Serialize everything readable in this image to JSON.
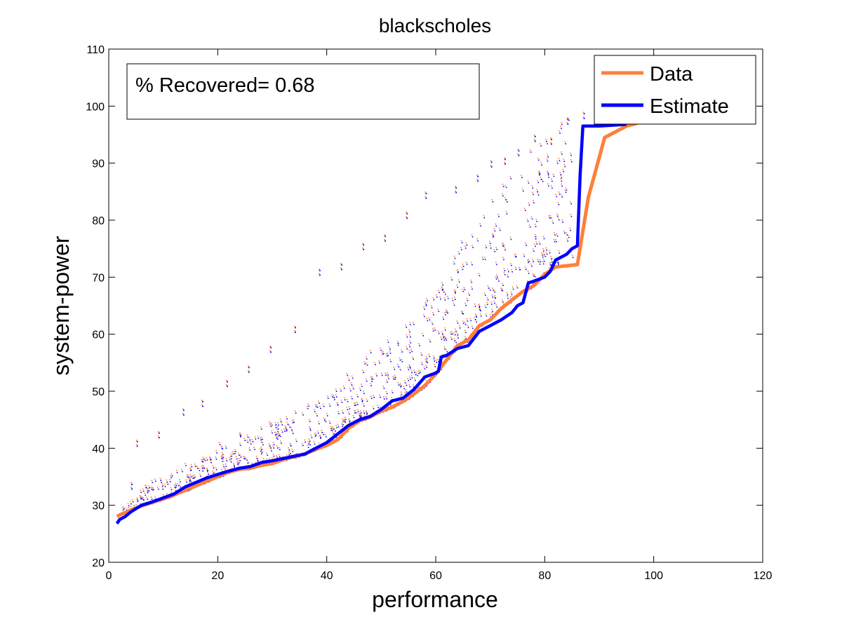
{
  "chart_data": {
    "type": "line",
    "title": "blackscholes",
    "xlabel": "performance",
    "ylabel": "system-power",
    "xlim": [
      0,
      120
    ],
    "ylim": [
      20,
      110
    ],
    "xticks": [
      0,
      20,
      40,
      60,
      80,
      100,
      120
    ],
    "yticks": [
      20,
      30,
      40,
      50,
      60,
      70,
      80,
      90,
      100,
      110
    ],
    "grid": false,
    "legend_position": "top-right",
    "annotation": "% Recovered= 0.68",
    "colors": {
      "data": "#ff7f3a",
      "estimate": "#0000ff"
    },
    "series": [
      {
        "name": "Data",
        "x": [
          1.5,
          2,
          3,
          4,
          5,
          6,
          8,
          10,
          12,
          14,
          16,
          18,
          20,
          22,
          24,
          26,
          28,
          30,
          32,
          34,
          36,
          38,
          40,
          42,
          44,
          46,
          48,
          50,
          52,
          54,
          56,
          58,
          60,
          62,
          64,
          66,
          68,
          70,
          72,
          74,
          76,
          78,
          80,
          82,
          84,
          86,
          88,
          91,
          95,
          97
        ],
        "y": [
          28,
          28.3,
          28.7,
          29.1,
          29.5,
          29.9,
          30.5,
          31.1,
          31.8,
          32.6,
          33.4,
          34.2,
          35,
          35.8,
          36.3,
          36.5,
          37,
          37.3,
          38,
          38.5,
          39,
          39.8,
          40.5,
          41.5,
          43.5,
          44.8,
          45.5,
          46.5,
          47.2,
          48.2,
          49.5,
          51,
          53,
          55.5,
          58,
          59,
          61.5,
          62.5,
          64.5,
          66,
          67.5,
          68.5,
          70.5,
          71.8,
          72,
          72.2,
          84,
          94.5,
          96.5,
          97
        ]
      },
      {
        "name": "Estimate",
        "x": [
          1.5,
          2,
          3,
          4,
          5,
          6,
          8,
          10,
          12,
          14,
          16,
          18,
          20,
          22,
          24,
          26,
          28,
          30,
          32,
          34,
          36,
          38,
          40,
          42,
          44,
          46,
          48,
          50,
          52,
          54,
          56,
          58,
          60,
          60.5,
          61,
          62,
          64,
          66,
          68,
          70,
          72,
          74,
          75,
          76,
          77,
          78,
          80,
          81,
          82,
          84,
          85,
          86,
          86.5,
          87,
          90,
          95
        ],
        "y": [
          26.8,
          27.5,
          28,
          28.8,
          29.4,
          30,
          30.6,
          31.3,
          32,
          33.2,
          34,
          34.8,
          35.4,
          36,
          36.5,
          36.8,
          37.5,
          37.8,
          38.2,
          38.6,
          39,
          40,
          41,
          42.5,
          44,
          45,
          45.6,
          46.8,
          48.3,
          48.8,
          50.3,
          52.5,
          53.2,
          53.5,
          56,
          56.3,
          57.5,
          58,
          60.5,
          61.5,
          62.5,
          63.8,
          65,
          65.5,
          69,
          69.3,
          70,
          71,
          73,
          74,
          75,
          75.5,
          88,
          96.5,
          96.5,
          96.8
        ]
      }
    ]
  }
}
